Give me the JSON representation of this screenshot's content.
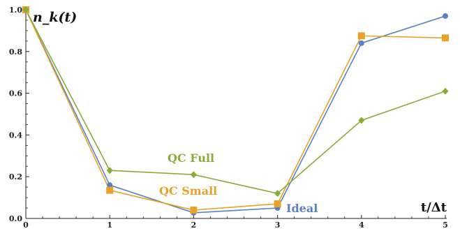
{
  "chart_data": {
    "type": "line",
    "title": "",
    "ylabel": "n_k(t)",
    "xlabel": "t/Δt",
    "xlim": [
      0,
      5
    ],
    "ylim": [
      0,
      1.0
    ],
    "x_ticks": [
      "0",
      "1",
      "2",
      "3",
      "4",
      "5"
    ],
    "y_ticks": [
      "0.0",
      "0.2",
      "0.4",
      "0.6",
      "0.8",
      "1.0"
    ],
    "grid": false,
    "legend": "inline labels",
    "series": [
      {
        "name": "Ideal",
        "color": "#5b82be",
        "marker": "circle",
        "x": [
          0,
          1,
          2,
          3,
          4,
          5
        ],
        "y": [
          1.0,
          0.16,
          0.027,
          0.05,
          0.84,
          0.97
        ]
      },
      {
        "name": "QC Small",
        "color": "#e8a228",
        "marker": "square",
        "x": [
          0,
          1,
          2,
          3,
          4,
          5
        ],
        "y": [
          1.0,
          0.135,
          0.04,
          0.07,
          0.875,
          0.865
        ]
      },
      {
        "name": "QC Full",
        "color": "#8aab3a",
        "marker": "diamond",
        "x": [
          0,
          1,
          2,
          3,
          4,
          5
        ],
        "y": [
          1.0,
          0.23,
          0.21,
          0.12,
          0.47,
          0.61
        ]
      }
    ]
  }
}
